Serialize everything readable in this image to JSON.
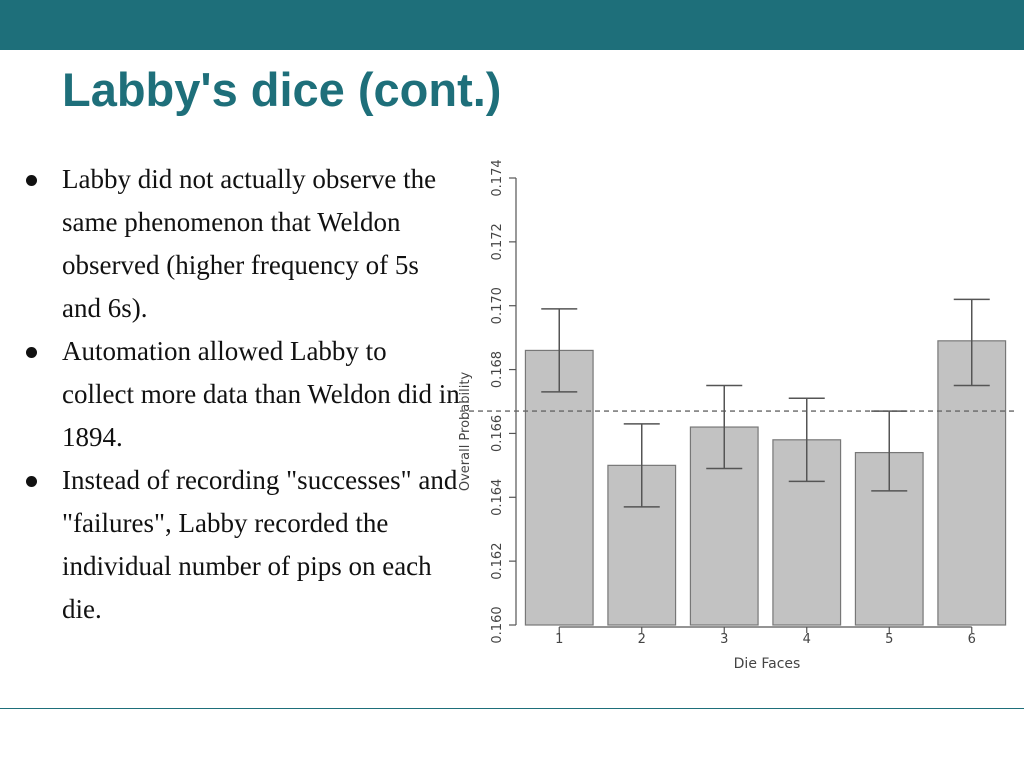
{
  "slide": {
    "title": "Labby's dice (cont.)",
    "bullets": [
      "Labby did not actually observe the same phenomenon that Weldon observed (higher frequency of 5s and 6s).",
      "Automation allowed Labby to collect more data than Weldon did in 1894.",
      "Instead of recording \"successes\" and \"failures\", Labby recorded the individual number of pips on each die."
    ]
  },
  "colors": {
    "accent": "#1e6f7a",
    "bar_fill": "#c2c2c2",
    "bar_stroke": "#777777",
    "axis": "#555555"
  },
  "chart_data": {
    "type": "bar",
    "title": "",
    "xlabel": "Die Faces",
    "ylabel": "Overall Probability",
    "categories": [
      "1",
      "2",
      "3",
      "4",
      "5",
      "6"
    ],
    "values": [
      0.1686,
      0.165,
      0.1662,
      0.1658,
      0.1654,
      0.1689
    ],
    "error_low": [
      0.1673,
      0.1637,
      0.1649,
      0.1645,
      0.1642,
      0.1675
    ],
    "error_high": [
      0.1699,
      0.1663,
      0.1675,
      0.1671,
      0.1667,
      0.1702
    ],
    "reference_line": 0.1667,
    "ylim": [
      0.16,
      0.174
    ],
    "yticks": [
      0.16,
      0.162,
      0.164,
      0.166,
      0.168,
      0.17,
      0.172,
      0.174
    ],
    "ytick_labels": [
      "0.160",
      "0.162",
      "0.164",
      "0.166",
      "0.168",
      "0.170",
      "0.172",
      "0.174"
    ],
    "grid": false
  }
}
